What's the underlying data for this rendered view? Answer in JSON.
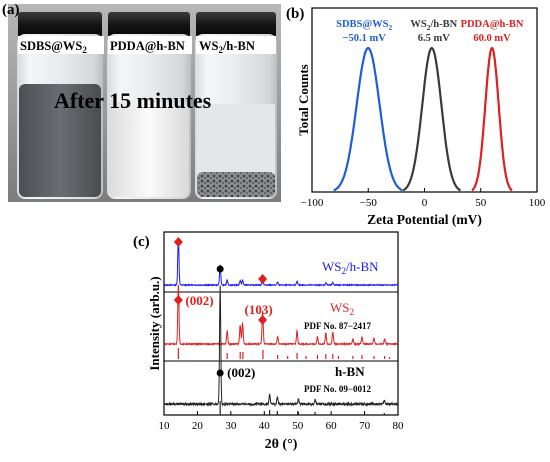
{
  "panel_a": {
    "label": "(a)",
    "vial_labels": [
      "SDBS@WS",
      "PDDA@h-BN",
      "WS",
      "/h-BN"
    ],
    "label_subscript": "2",
    "caption": "After 15 minutes"
  },
  "chart_data": [
    {
      "type": "line",
      "panel": "(b)",
      "xlabel": "Zeta Potential (mV)",
      "ylabel": "Total Counts",
      "xlim": [
        -100,
        100
      ],
      "xticks": [
        -100,
        -50,
        0,
        50,
        100
      ],
      "grid": false,
      "series": [
        {
          "name": "SDBS@WS2",
          "value_label": "−50.1 mV",
          "color": "#1f5fd6",
          "center": -50.1,
          "fwhm": 24
        },
        {
          "name": "WS2/h-BN",
          "value_label": "6.5 mV",
          "color": "#3a3a3a",
          "center": 6.5,
          "fwhm": 20
        },
        {
          "name": "PDDA@h-BN",
          "value_label": "60.0 mV",
          "color": "#e02020",
          "center": 60.0,
          "fwhm": 14
        }
      ]
    },
    {
      "type": "line",
      "panel": "(c)",
      "xlabel": "2θ (°)",
      "ylabel": "Intensity (arb.u.)",
      "xlim": [
        10,
        80
      ],
      "xticks": [
        10,
        20,
        30,
        40,
        50,
        60,
        70,
        80
      ],
      "grid": false,
      "series": [
        {
          "name": "WS2/h-BN",
          "color": "#1a1aee",
          "peaks": [
            [
              14.3,
              1.0
            ],
            [
              26.8,
              0.42
            ],
            [
              28.9,
              0.1
            ],
            [
              32.8,
              0.09
            ],
            [
              33.5,
              0.1
            ],
            [
              39.5,
              0.16
            ],
            [
              44.0,
              0.06
            ],
            [
              49.8,
              0.07
            ],
            [
              58.5,
              0.05
            ],
            [
              60.5,
              0.05
            ]
          ]
        },
        {
          "name": "WS2",
          "color": "#e02020",
          "pdf": "PDF No. 87−2417",
          "peaks": [
            [
              14.3,
              1.0
            ],
            [
              28.9,
              0.22
            ],
            [
              32.8,
              0.32
            ],
            [
              33.5,
              0.35
            ],
            [
              39.5,
              0.55
            ],
            [
              44.0,
              0.12
            ],
            [
              49.8,
              0.22
            ],
            [
              55.9,
              0.12
            ],
            [
              58.4,
              0.18
            ],
            [
              60.5,
              0.2
            ],
            [
              66.5,
              0.08
            ],
            [
              69.2,
              0.12
            ],
            [
              72.8,
              0.1
            ],
            [
              76.0,
              0.08
            ]
          ],
          "ref_lines": [
            14.3,
            28.9,
            32.8,
            33.6,
            39.6,
            44.0,
            47.0,
            49.8,
            52.5,
            55.9,
            58.4,
            60.5,
            62.2,
            66.5,
            69.2,
            72.8,
            76.0,
            77.5
          ]
        },
        {
          "name": "h-BN",
          "color": "#222222",
          "pdf": "PDF No. 09−0012",
          "peaks": [
            [
              26.8,
              1.0
            ],
            [
              41.6,
              0.08
            ],
            [
              43.9,
              0.06
            ],
            [
              50.2,
              0.04
            ],
            [
              55.2,
              0.04
            ],
            [
              75.9,
              0.03
            ]
          ],
          "ref_lines": [
            26.8,
            41.6,
            43.9,
            50.2,
            55.2,
            75.9
          ]
        }
      ],
      "annotations": [
        {
          "text": "(002)",
          "color": "#e02020",
          "x": 14.3
        },
        {
          "text": "(103)",
          "color": "#e02020",
          "x": 39.5
        },
        {
          "text": "(002)",
          "color": "#000000",
          "x": 26.8
        }
      ]
    }
  ]
}
